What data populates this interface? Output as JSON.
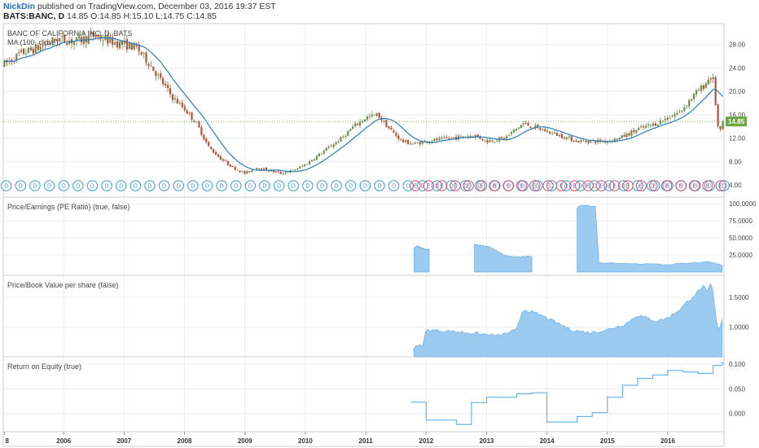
{
  "header": {
    "author": "NickDin",
    "published": " published on TradingView.com, December 03, 2016 19:37 EST",
    "symbol": "BATS:BANC, D",
    "ohlc": " 14.85 O:14.85 H:15.10 L:14.75 C:14.85"
  },
  "colors": {
    "candle_up": "#6b8e4e",
    "candle_down": "#b5533a",
    "ma_line": "#2b7bb9",
    "area_fill": "#9ccbf2",
    "area_stroke": "#6fb1ea",
    "roe_line": "#6ab2e8",
    "dividend_marker": "#3a9ad9",
    "earnings_marker": "#d0506e",
    "price_badge": "#6ba843",
    "grid": "#e9eef2"
  },
  "chart_data": [
    {
      "type": "candlestick",
      "title": "BANC OF CALIFORNIA INC, D, BATS",
      "indicator": "MA (100, close)",
      "x_ticks": [
        "8",
        "2006",
        "2007",
        "2008",
        "2009",
        "2010",
        "2011",
        "2012",
        "2013",
        "2014",
        "2015",
        "2016"
      ],
      "y_ticks": [
        "28.00",
        "24.00",
        "20.00",
        "16.00",
        "12.00",
        "8.00",
        "4.00"
      ],
      "ylim": [
        2.5,
        31
      ],
      "last_price": "14.85",
      "price_keypoints": [
        [
          2005.0,
          24.5
        ],
        [
          2005.3,
          26.5
        ],
        [
          2005.6,
          27.5
        ],
        [
          2005.9,
          29.0
        ],
        [
          2006.2,
          28.5
        ],
        [
          2006.5,
          29.5
        ],
        [
          2006.8,
          28.5
        ],
        [
          2007.0,
          28.0
        ],
        [
          2007.2,
          27.5
        ],
        [
          2007.4,
          25.0
        ],
        [
          2007.6,
          22.0
        ],
        [
          2007.8,
          19.0
        ],
        [
          2008.0,
          17.0
        ],
        [
          2008.2,
          14.5
        ],
        [
          2008.4,
          10.5
        ],
        [
          2008.6,
          8.5
        ],
        [
          2008.8,
          7.0
        ],
        [
          2009.0,
          6.0
        ],
        [
          2009.2,
          7.0
        ],
        [
          2009.4,
          6.5
        ],
        [
          2009.6,
          6.0
        ],
        [
          2009.8,
          6.5
        ],
        [
          2010.0,
          7.5
        ],
        [
          2010.2,
          9.0
        ],
        [
          2010.4,
          10.5
        ],
        [
          2010.6,
          12.0
        ],
        [
          2010.8,
          14.0
        ],
        [
          2011.0,
          15.5
        ],
        [
          2011.2,
          16.0
        ],
        [
          2011.4,
          13.5
        ],
        [
          2011.6,
          11.5
        ],
        [
          2011.8,
          11.0
        ],
        [
          2012.0,
          11.5
        ],
        [
          2012.4,
          12.0
        ],
        [
          2012.8,
          12.5
        ],
        [
          2013.0,
          11.5
        ],
        [
          2013.3,
          12.0
        ],
        [
          2013.6,
          14.5
        ],
        [
          2013.9,
          13.5
        ],
        [
          2014.2,
          12.5
        ],
        [
          2014.5,
          11.5
        ],
        [
          2014.8,
          11.5
        ],
        [
          2015.0,
          11.5
        ],
        [
          2015.2,
          12.0
        ],
        [
          2015.5,
          13.5
        ],
        [
          2015.8,
          14.5
        ],
        [
          2016.0,
          15.5
        ],
        [
          2016.2,
          16.5
        ],
        [
          2016.4,
          19.0
        ],
        [
          2016.6,
          21.0
        ],
        [
          2016.7,
          22.5
        ],
        [
          2016.75,
          22.0
        ],
        [
          2016.8,
          17.0
        ],
        [
          2016.85,
          12.0
        ],
        [
          2016.9,
          14.85
        ]
      ],
      "dividend_markers": 51,
      "earnings_markers": 24
    },
    {
      "type": "area",
      "title": "Price/Earnings (PE Ratio) (true, false)",
      "y_ticks": [
        "100.0000",
        "75.0000",
        "50.0000",
        "25.0000"
      ],
      "ylim": [
        0,
        105
      ],
      "segments": [
        {
          "x": [
            2011.8,
            2011.85,
            2012.0,
            2012.05
          ],
          "y": [
            35,
            38,
            33,
            33
          ]
        },
        {
          "x": [
            2012.8,
            2013.0,
            2013.05,
            2013.3,
            2013.5,
            2013.75
          ],
          "y": [
            40,
            38,
            37,
            24,
            22,
            23
          ]
        },
        {
          "x": [
            2014.5,
            2014.55,
            2014.8,
            2014.85,
            2015.5,
            2016.0,
            2016.7,
            2016.9
          ],
          "y": [
            95,
            98,
            96,
            14,
            12,
            11,
            15,
            10
          ]
        }
      ]
    },
    {
      "type": "area",
      "title": "Price/Book Value per share (false)",
      "y_ticks": [
        "1.5000",
        "1.0000"
      ],
      "ylim": [
        0.55,
        1.82
      ],
      "x": [
        2011.8,
        2011.95,
        2012.0,
        2012.5,
        2012.9,
        2013.2,
        2013.5,
        2013.6,
        2013.9,
        2014.2,
        2014.4,
        2014.7,
        2015.0,
        2015.3,
        2015.5,
        2015.8,
        2016.0,
        2016.2,
        2016.4,
        2016.55,
        2016.6,
        2016.65,
        2016.7,
        2016.75,
        2016.8,
        2016.85,
        2016.9
      ],
      "y": [
        0.65,
        0.7,
        0.95,
        0.92,
        0.88,
        0.85,
        0.95,
        1.3,
        1.2,
        1.05,
        0.95,
        0.9,
        0.95,
        1.05,
        1.2,
        1.1,
        1.15,
        1.3,
        1.5,
        1.65,
        1.7,
        1.55,
        1.75,
        1.6,
        1.1,
        0.9,
        1.15
      ]
    },
    {
      "type": "line",
      "title": "Return on Equity (true)",
      "y_ticks": [
        "0.100",
        "0.050",
        "0.000"
      ],
      "ylim": [
        -0.03,
        0.108
      ],
      "step": true,
      "x": [
        2011.75,
        2012.0,
        2012.5,
        2012.75,
        2013.0,
        2013.5,
        2013.75,
        2014.0,
        2014.5,
        2014.75,
        2015.0,
        2015.25,
        2015.5,
        2015.75,
        2016.0,
        2016.25,
        2016.5,
        2016.75,
        2016.9
      ],
      "y": [
        0.023,
        -0.013,
        -0.022,
        0.022,
        0.033,
        0.04,
        0.042,
        -0.017,
        -0.006,
        0.002,
        0.033,
        0.057,
        0.071,
        0.078,
        0.087,
        0.084,
        0.081,
        0.097,
        0.102
      ]
    }
  ]
}
